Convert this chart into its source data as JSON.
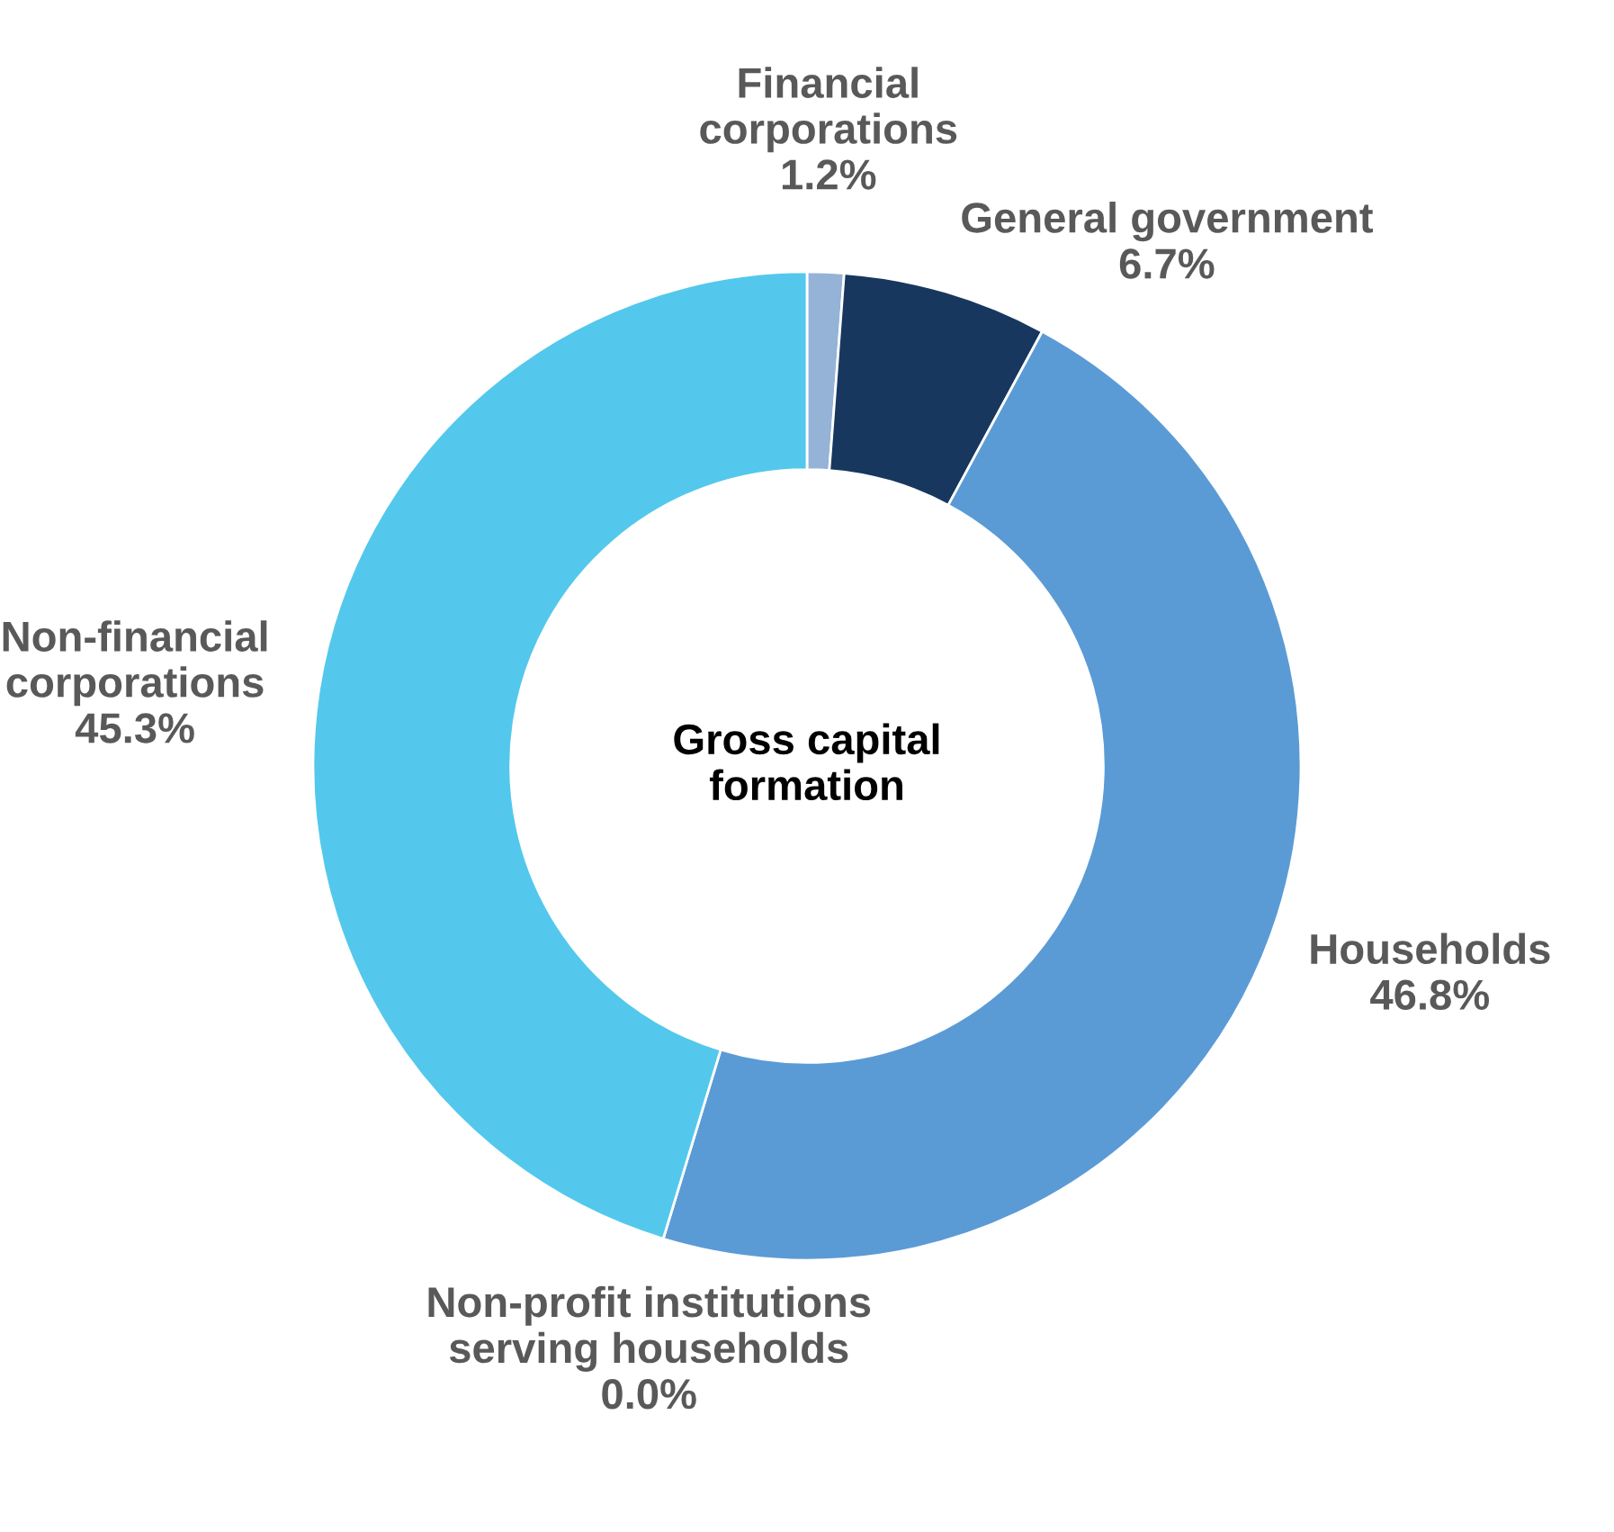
{
  "chart_data": {
    "type": "donut",
    "title": "Gross capital\nformation",
    "categories": [
      "Financial\ncorporations",
      "General government",
      "Households",
      "Non-profit institutions\nserving households",
      "Non-financial\ncorporations"
    ],
    "values": [
      1.2,
      6.7,
      46.8,
      0.0,
      45.3
    ],
    "value_labels": [
      "1.2%",
      "6.7%",
      "46.8%",
      "0.0%",
      "45.3%"
    ],
    "colors": [
      "#95b3d7",
      "#17375e",
      "#5b9bd5",
      "#4f81bd",
      "#53c8ec"
    ],
    "legend": false
  }
}
